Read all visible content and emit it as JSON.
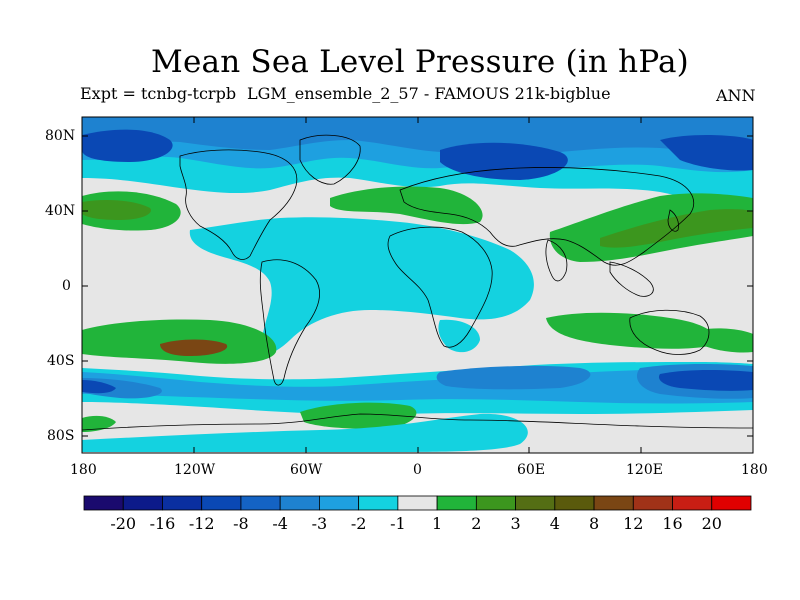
{
  "title": "Mean Sea Level Pressure (in hPa)",
  "expt_label": "Expt = tcnbg-tcrpb",
  "ensemble_label": "LGM_ensemble_2_57 - FAMOUS 21k-bigblue",
  "season": "ANN",
  "axes": {
    "lat_ticks": [
      "80N",
      "40N",
      "0",
      "40S",
      "80S"
    ],
    "lon_ticks": [
      "180",
      "120W",
      "60W",
      "0",
      "60E",
      "120E",
      "180"
    ]
  },
  "colorbar": {
    "labels": [
      "-20",
      "-16",
      "-12",
      "-8",
      "-4",
      "-3",
      "-2",
      "-1",
      "1",
      "2",
      "3",
      "4",
      "8",
      "12",
      "16",
      "20"
    ],
    "colors": [
      "#1a0a6e",
      "#0c1a8a",
      "#0a2fa0",
      "#0a48b4",
      "#1463c4",
      "#1e82d0",
      "#1ea0e0",
      "#14d2e0",
      "#e6e6e6",
      "#21b43a",
      "#3c961e",
      "#546e14",
      "#5a5a0c",
      "#7a4614",
      "#a03218",
      "#c81e14",
      "#e00000"
    ]
  },
  "palette": {
    "deep_neg": "#0a48b4",
    "mid_neg": "#1e82d0",
    "light_neg": "#1ea0e0",
    "near_neg": "#14d2e0",
    "neutral": "#e6e6e6",
    "pos": "#21b43a",
    "pos2": "#3c961e",
    "pos3": "#546e14",
    "pos4": "#7a4614"
  }
}
